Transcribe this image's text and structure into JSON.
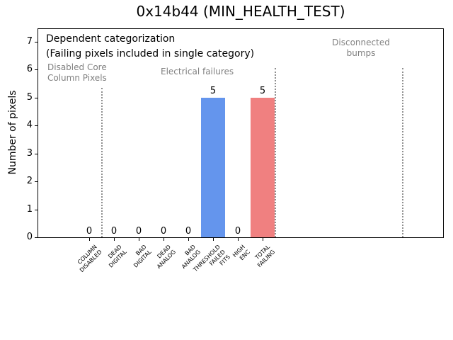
{
  "chart_data": {
    "type": "bar",
    "title": "0x14b44 (MIN_HEALTH_TEST)",
    "ylabel": "Number of pixels",
    "xlabel": "",
    "ylim": [
      0,
      7.45
    ],
    "yticks": [
      0,
      1,
      2,
      3,
      4,
      5,
      6,
      7
    ],
    "grid": false,
    "legend": "none",
    "categories": [
      "COLUMN\nDISABLED",
      "DEAD\nDIGITAL",
      "BAD\nDIGITAL",
      "DEAD\nANALOG",
      "BAD\nANALOG",
      "THRESHOLD\nFAILED\nFITS",
      "HIGH\nENC",
      "TOTAL\nFAILING"
    ],
    "values": [
      0,
      0,
      0,
      0,
      0,
      5,
      0,
      5
    ],
    "value_labels": [
      "0",
      "0",
      "0",
      "0",
      "0",
      "5",
      "0",
      "5"
    ],
    "bar_colors": [
      "#6495ED",
      "#6495ED",
      "#6495ED",
      "#6495ED",
      "#6495ED",
      "#6495ED",
      "#6495ED",
      "#F08080"
    ],
    "annotations": [
      {
        "id": "dependent-categorization",
        "text": "Dependent categorization",
        "color": "#000000"
      },
      {
        "id": "failing-note",
        "text": "(Failing pixels included in single category)",
        "color": "#000000"
      },
      {
        "id": "disabled-core-column-pixels",
        "text": "Disabled Core\nColumn Pixels",
        "color": "#808080"
      },
      {
        "id": "electrical-failures",
        "text": "Electrical failures",
        "color": "#808080"
      },
      {
        "id": "disconnected-bumps",
        "text": "Disconnected\nbumps",
        "color": "#808080"
      }
    ],
    "separators": [
      {
        "x_data": 0.5,
        "y_top_data": 5.35,
        "style": "dotted",
        "color": "#8f8f8f"
      },
      {
        "x_data": 7.5,
        "y_top_data": 6.05,
        "style": "dotted",
        "color": "#8f8f8f"
      },
      {
        "x_data": 12.65,
        "y_top_data": 6.05,
        "style": "dotted",
        "color": "#8f8f8f"
      }
    ],
    "colors": {
      "bar_blue": "#6495ED",
      "bar_red": "#F08080",
      "annotation_grey": "#808080",
      "axis": "#000000",
      "background": "#ffffff"
    }
  }
}
